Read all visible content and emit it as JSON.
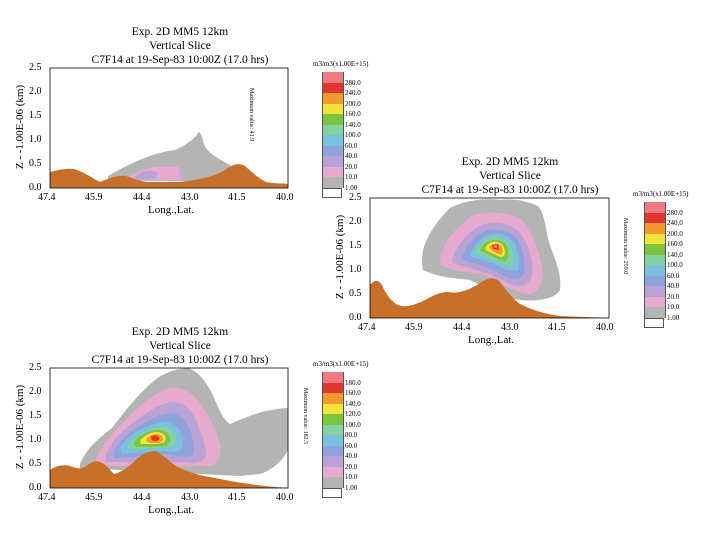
{
  "panels": [
    {
      "id": "p1",
      "title": [
        "Exp. 2D MM5 12km",
        "Vertical Slice",
        "C7F14 at 19-Sep-83 10:00Z (17.0 hrs)"
      ],
      "units": "m3/m3(x1.00E+15)",
      "side_note": "Maximum value: 41.9",
      "ylabel": "Z - -1.00E-06 (km)",
      "xlabel": "Long.,Lat.",
      "xticks": [
        "47.4",
        "45.9",
        "44.4",
        "43.0",
        "41.5",
        "40.0"
      ],
      "yticks": [
        "0.0",
        "0.5",
        "1.0",
        "1.5",
        "2.0",
        "2.5"
      ],
      "legend": [
        "280.0",
        "240.0",
        "200.0",
        "160.0",
        "140.0",
        "100.0",
        "60.0",
        "40.0",
        "20.0",
        "10.0",
        "1.00"
      ]
    },
    {
      "id": "p2",
      "title": [
        "Exp. 2D MM5 12km",
        "Vertical Slice",
        "C7F14 at 19-Sep-83 10:00Z (17.0 hrs)"
      ],
      "units": "m3/m3(x1.00E+15)",
      "side_note": "Maximum value: 259.0",
      "ylabel": "Z - -1.00E-06 (km)",
      "xlabel": "Long.,Lat.",
      "xticks": [
        "47.4",
        "45.9",
        "44.4",
        "43.0",
        "41.5",
        "40.0"
      ],
      "yticks": [
        "0.0",
        "0.5",
        "1.0",
        "1.5",
        "2.0",
        "2.5"
      ],
      "legend": [
        "280.0",
        "240.0",
        "200.0",
        "160.0",
        "140.0",
        "100.0",
        "60.0",
        "40.0",
        "20.0",
        "10.0",
        "1.00"
      ]
    },
    {
      "id": "p3",
      "title": [
        "Exp. 2D MM5 12km",
        "Vertical Slice",
        "C7F14 at 19-Sep-83 10:00Z (17.0 hrs)"
      ],
      "units": "m3/m3(x1.00E+15)",
      "side_note": "Maximum value: 182.5",
      "ylabel": "Z - -1.00E-06 (km)",
      "xlabel": "Long.,Lat.",
      "xticks": [
        "47.4",
        "45.9",
        "44.4",
        "43.0",
        "41.5",
        "40.0"
      ],
      "yticks": [
        "0.0",
        "0.5",
        "1.0",
        "1.5",
        "2.0",
        "2.5"
      ],
      "legend": [
        "180.0",
        "160.0",
        "140.0",
        "120.0",
        "100.0",
        "80.0",
        "60.0",
        "40.0",
        "20.0",
        "10.0",
        "1.00"
      ]
    }
  ],
  "chart_data": [
    {
      "type": "heatmap",
      "subtype": "filled-contour",
      "title": "Exp. 2D MM5 12km / Vertical Slice / C7F14 at 19-Sep-83 10:00Z (17.0 hrs)",
      "xlabel": "Long.,Lat.",
      "ylabel": "Z - -1.00E-06 (km)",
      "xlim": [
        47.4,
        40.0
      ],
      "ylim": [
        0.0,
        2.5
      ],
      "levels": [
        1,
        10,
        20,
        40,
        60,
        100,
        140,
        160,
        200,
        240,
        280
      ],
      "max_value": 41.9
    },
    {
      "type": "heatmap",
      "subtype": "filled-contour",
      "title": "Exp. 2D MM5 12km / Vertical Slice / C7F14 at 19-Sep-83 10:00Z (17.0 hrs)",
      "xlabel": "Long.,Lat.",
      "ylabel": "Z - -1.00E-06 (km)",
      "xlim": [
        47.4,
        40.0
      ],
      "ylim": [
        0.0,
        2.5
      ],
      "levels": [
        1,
        10,
        20,
        40,
        60,
        100,
        140,
        160,
        200,
        240,
        280
      ],
      "max_value": 259.0
    },
    {
      "type": "heatmap",
      "subtype": "filled-contour",
      "title": "Exp. 2D MM5 12km / Vertical Slice / C7F14 at 19-Sep-83 10:00Z (17.0 hrs)",
      "xlabel": "Long.,Lat.",
      "ylabel": "Z - -1.00E-06 (km)",
      "xlim": [
        47.4,
        40.0
      ],
      "ylim": [
        0.0,
        2.5
      ],
      "levels": [
        1,
        10,
        20,
        40,
        60,
        80,
        100,
        120,
        140,
        160,
        180
      ],
      "max_value": 182.5
    }
  ],
  "colors": {
    "levels": [
      "#ffffff",
      "#b4b4b4",
      "#e6aace",
      "#b9a2d6",
      "#8fa2dc",
      "#79c2df",
      "#83d29f",
      "#7cc442",
      "#f2e43a",
      "#f29a2c",
      "#e03530",
      "#f07a82"
    ],
    "terrain": "#c8702a"
  }
}
